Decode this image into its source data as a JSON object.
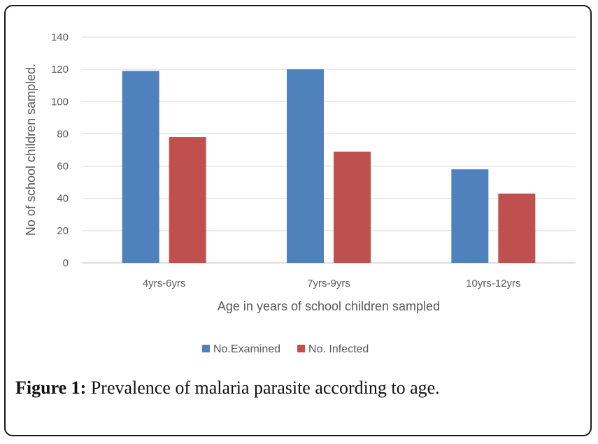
{
  "chart_data": {
    "type": "bar",
    "categories": [
      "4yrs-6yrs",
      "7yrs-9yrs",
      "10yrs-12yrs"
    ],
    "series": [
      {
        "name": "No.Examined",
        "values": [
          119,
          120,
          58
        ],
        "color": "#4f81bd"
      },
      {
        "name": "No. Infected",
        "values": [
          78,
          69,
          43
        ],
        "color": "#c0504d"
      }
    ],
    "title": "",
    "xlabel": "Age in years of school children sampled",
    "ylabel": "No of school children sampled.",
    "ylim": [
      0,
      140
    ],
    "yticks": [
      0,
      20,
      40,
      60,
      80,
      100,
      120,
      140
    ],
    "grid": true,
    "legend_position": "bottom"
  },
  "caption": {
    "label": "Figure 1:",
    "text": " Prevalence of malaria parasite according to age."
  }
}
